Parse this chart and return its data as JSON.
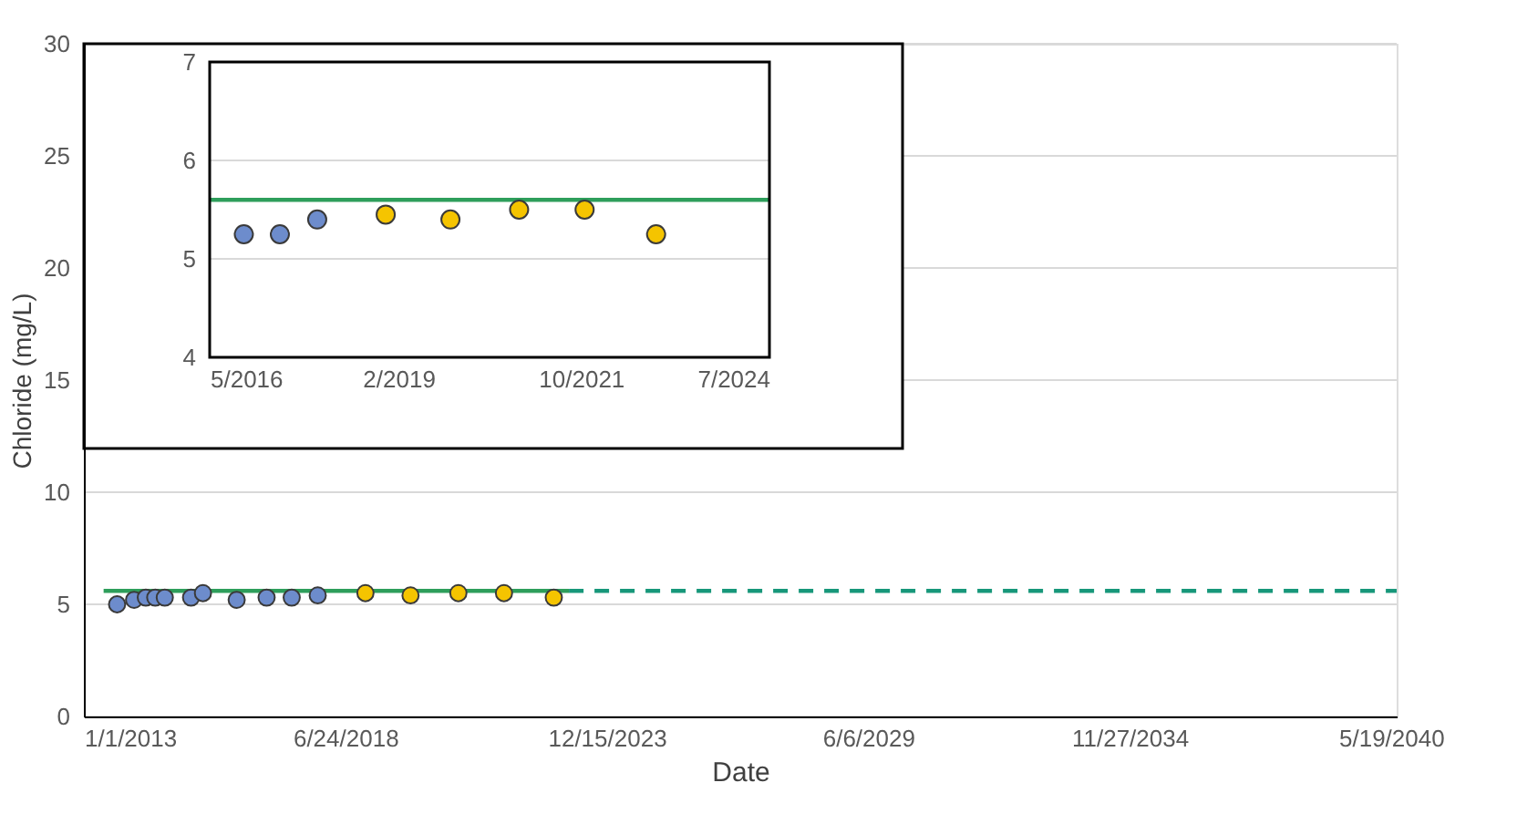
{
  "chart_data": [
    {
      "type": "scatter",
      "xlabel": "Date",
      "ylabel": "Chloride (mg/L)",
      "xlim": [
        "2013-01-01",
        "2040-07-01"
      ],
      "xticks": [
        {
          "value": "2013-01-01",
          "label": "1/1/2013"
        },
        {
          "value": "2018-06-24",
          "label": "6/24/2018"
        },
        {
          "value": "2023-12-15",
          "label": "12/15/2023"
        },
        {
          "value": "2029-06-06",
          "label": "6/6/2029"
        },
        {
          "value": "2034-11-27",
          "label": "11/27/2034"
        },
        {
          "value": "2040-05-19",
          "label": "5/19/2040"
        }
      ],
      "ylim": [
        0,
        30
      ],
      "yticks": [
        0,
        5,
        10,
        15,
        20,
        25,
        30
      ],
      "grid": "y",
      "series": [
        {
          "type": "line",
          "color": "#2e9e5b",
          "line_style": "solid",
          "x": [
            "2013-06-01",
            "2023-03-01"
          ],
          "values": [
            5.6,
            5.6
          ]
        },
        {
          "type": "line",
          "color": "#17977a",
          "line_style": "dashed",
          "x": [
            "2023-03-01",
            "2040-07-01"
          ],
          "values": [
            5.6,
            5.6
          ]
        },
        {
          "type": "scatter",
          "marker": "circle",
          "color": "#6d8ccc",
          "x": [
            "2013-09-12",
            "2014-01-20",
            "2014-04-20",
            "2014-07-01",
            "2014-09-12",
            "2015-04-01",
            "2015-07-01",
            "2016-03-15",
            "2016-10-30",
            "2017-05-10",
            "2017-11-25"
          ],
          "values": [
            5.0,
            5.2,
            5.3,
            5.3,
            5.3,
            5.3,
            5.5,
            5.2,
            5.3,
            5.3,
            5.4
          ]
        },
        {
          "type": "scatter",
          "marker": "circle",
          "color": "#f5c400",
          "x": [
            "2018-11-25",
            "2019-11-05",
            "2020-11-05",
            "2021-10-20",
            "2022-11-05"
          ],
          "values": [
            5.5,
            5.4,
            5.5,
            5.5,
            5.3
          ]
        }
      ]
    },
    {
      "type": "scatter",
      "xlim": [
        "2016-05-01",
        "2024-07-01"
      ],
      "xticks": [
        {
          "value": "2016-05-01",
          "label": "5/2016"
        },
        {
          "value": "2019-02-01",
          "label": "2/2019"
        },
        {
          "value": "2021-10-01",
          "label": "10/2021"
        },
        {
          "value": "2024-07-01",
          "label": "7/2024"
        }
      ],
      "ylim": [
        4,
        7
      ],
      "yticks": [
        4,
        5,
        6,
        7
      ],
      "grid": "y",
      "series": [
        {
          "type": "line",
          "color": "#2e9e5b",
          "line_style": "solid",
          "x": [
            "2016-05-01",
            "2024-07-01"
          ],
          "values": [
            5.6,
            5.6
          ]
        },
        {
          "type": "scatter",
          "marker": "circle",
          "color": "#6d8ccc",
          "x": [
            "2016-10-30",
            "2017-05-10",
            "2017-11-25"
          ],
          "values": [
            5.25,
            5.25,
            5.4
          ]
        },
        {
          "type": "scatter",
          "marker": "circle",
          "color": "#f5c400",
          "x": [
            "2018-11-25",
            "2019-11-05",
            "2020-11-05",
            "2021-10-20",
            "2022-11-05"
          ],
          "values": [
            5.45,
            5.4,
            5.5,
            5.5,
            5.25
          ]
        }
      ]
    }
  ]
}
